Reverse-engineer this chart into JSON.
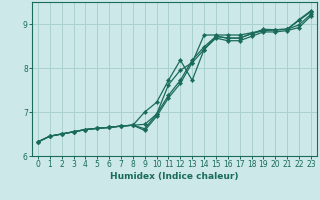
{
  "xlabel": "Humidex (Indice chaleur)",
  "ylabel": "",
  "background_color": "#cce8e8",
  "grid_color": "#aad0d0",
  "line_color": "#1a6b5a",
  "xlim": [
    -0.5,
    23.5
  ],
  "ylim": [
    6.0,
    9.5
  ],
  "xticks": [
    0,
    1,
    2,
    3,
    4,
    5,
    6,
    7,
    8,
    9,
    10,
    11,
    12,
    13,
    14,
    15,
    16,
    17,
    18,
    19,
    20,
    21,
    22,
    23
  ],
  "yticks": [
    6,
    7,
    8,
    9
  ],
  "lines": [
    [
      6.32,
      6.45,
      6.5,
      6.55,
      6.6,
      6.63,
      6.65,
      6.68,
      6.7,
      6.72,
      6.95,
      7.62,
      7.95,
      8.12,
      8.75,
      8.75,
      8.75,
      8.75,
      8.8,
      8.85,
      8.87,
      8.88,
      9.08,
      9.28
    ],
    [
      6.32,
      6.45,
      6.5,
      6.55,
      6.6,
      6.63,
      6.65,
      6.68,
      6.7,
      7.0,
      7.22,
      7.72,
      8.18,
      7.72,
      8.42,
      8.72,
      8.68,
      8.68,
      8.78,
      8.85,
      8.87,
      8.88,
      9.1,
      9.3
    ],
    [
      6.32,
      6.45,
      6.5,
      6.55,
      6.6,
      6.63,
      6.65,
      6.68,
      6.7,
      6.62,
      6.95,
      7.38,
      7.72,
      8.18,
      8.48,
      8.72,
      8.68,
      8.68,
      8.78,
      8.88,
      8.87,
      8.88,
      8.98,
      9.22
    ],
    [
      6.32,
      6.45,
      6.5,
      6.55,
      6.6,
      6.63,
      6.65,
      6.68,
      6.7,
      6.58,
      6.9,
      7.32,
      7.65,
      8.12,
      8.42,
      8.68,
      8.62,
      8.62,
      8.72,
      8.82,
      8.82,
      8.85,
      8.92,
      9.18
    ]
  ]
}
